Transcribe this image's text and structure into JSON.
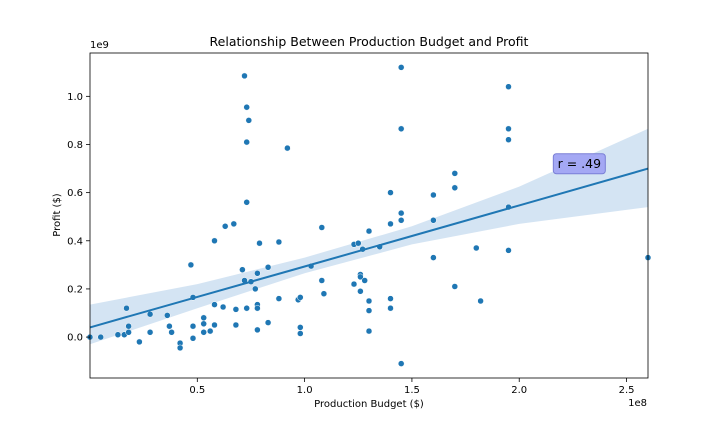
{
  "chart_data": {
    "type": "scatter",
    "title": "Relationship Between Production Budget and Profit",
    "xlabel": "Production Budget ($)",
    "ylabel": "Profit ($)",
    "x_multiplier_label": "1e8",
    "y_multiplier_label": "1e9",
    "xlim": [
      0.0,
      2.6
    ],
    "ylim": [
      -0.17,
      1.18
    ],
    "x_ticks": [
      {
        "value": 0.5,
        "label": "0.5"
      },
      {
        "value": 1.0,
        "label": "1.0"
      },
      {
        "value": 1.5,
        "label": "1.5"
      },
      {
        "value": 2.0,
        "label": "2.0"
      },
      {
        "value": 2.5,
        "label": "2.5"
      }
    ],
    "y_ticks": [
      {
        "value": 0.0,
        "label": "0.0"
      },
      {
        "value": 0.2,
        "label": "0.2"
      },
      {
        "value": 0.4,
        "label": "0.4"
      },
      {
        "value": 0.6,
        "label": "0.6"
      },
      {
        "value": 0.8,
        "label": "0.8"
      },
      {
        "value": 1.0,
        "label": "1.0"
      }
    ],
    "grid": false,
    "annotation": {
      "text": "r = .49",
      "x": 2.28,
      "y": 0.72
    },
    "regression": {
      "x": [
        0.0,
        0.5,
        1.0,
        1.5,
        2.0,
        2.6
      ],
      "y": [
        0.04,
        0.167,
        0.293,
        0.42,
        0.547,
        0.7
      ],
      "ci_lower": [
        -0.03,
        0.12,
        0.265,
        0.385,
        0.47,
        0.54
      ],
      "ci_upper": [
        0.135,
        0.22,
        0.33,
        0.46,
        0.625,
        0.865
      ]
    },
    "colors": {
      "points": "#1f77b4",
      "line": "#1f77b4",
      "band": "#c6dbef",
      "annotation_fill": "#a4a8f4",
      "annotation_stroke": "#7a7fd6"
    },
    "series": [
      {
        "points": [
          [
            0.0,
            0.0
          ],
          [
            0.05,
            0.0
          ],
          [
            0.13,
            0.01
          ],
          [
            0.16,
            0.01
          ],
          [
            0.17,
            0.12
          ],
          [
            0.18,
            0.02
          ],
          [
            0.18,
            0.045
          ],
          [
            0.23,
            -0.02
          ],
          [
            0.28,
            0.095
          ],
          [
            0.28,
            0.02
          ],
          [
            0.36,
            0.09
          ],
          [
            0.37,
            0.045
          ],
          [
            0.38,
            0.02
          ],
          [
            0.42,
            -0.025
          ],
          [
            0.42,
            -0.045
          ],
          [
            0.47,
            0.3
          ],
          [
            0.48,
            0.045
          ],
          [
            0.48,
            0.165
          ],
          [
            0.48,
            -0.005
          ],
          [
            0.53,
            0.08
          ],
          [
            0.53,
            0.055
          ],
          [
            0.53,
            0.02
          ],
          [
            0.56,
            0.025
          ],
          [
            0.58,
            0.135
          ],
          [
            0.58,
            0.05
          ],
          [
            0.58,
            0.4
          ],
          [
            0.62,
            0.125
          ],
          [
            0.63,
            0.46
          ],
          [
            0.67,
            0.47
          ],
          [
            0.68,
            0.115
          ],
          [
            0.68,
            0.05
          ],
          [
            0.71,
            0.28
          ],
          [
            0.72,
            0.235
          ],
          [
            0.72,
            1.085
          ],
          [
            0.73,
            0.955
          ],
          [
            0.73,
            0.81
          ],
          [
            0.73,
            0.56
          ],
          [
            0.73,
            0.12
          ],
          [
            0.74,
            0.9
          ],
          [
            0.75,
            0.23
          ],
          [
            0.77,
            0.2
          ],
          [
            0.78,
            0.135
          ],
          [
            0.78,
            0.12
          ],
          [
            0.78,
            0.265
          ],
          [
            0.78,
            0.03
          ],
          [
            0.79,
            0.39
          ],
          [
            0.83,
            0.06
          ],
          [
            0.83,
            0.29
          ],
          [
            0.88,
            0.395
          ],
          [
            0.88,
            0.16
          ],
          [
            0.92,
            0.785
          ],
          [
            0.97,
            0.155
          ],
          [
            0.98,
            0.165
          ],
          [
            0.98,
            0.04
          ],
          [
            0.98,
            0.015
          ],
          [
            1.03,
            0.295
          ],
          [
            1.08,
            0.455
          ],
          [
            1.08,
            0.235
          ],
          [
            1.09,
            0.18
          ],
          [
            1.23,
            0.385
          ],
          [
            1.23,
            0.22
          ],
          [
            1.25,
            0.39
          ],
          [
            1.26,
            0.26
          ],
          [
            1.26,
            0.25
          ],
          [
            1.26,
            0.19
          ],
          [
            1.27,
            0.365
          ],
          [
            1.28,
            0.235
          ],
          [
            1.3,
            0.44
          ],
          [
            1.3,
            0.15
          ],
          [
            1.3,
            0.11
          ],
          [
            1.3,
            0.025
          ],
          [
            1.35,
            0.375
          ],
          [
            1.4,
            0.6
          ],
          [
            1.4,
            0.47
          ],
          [
            1.4,
            0.16
          ],
          [
            1.4,
            0.12
          ],
          [
            1.45,
            1.12
          ],
          [
            1.45,
            0.865
          ],
          [
            1.45,
            0.515
          ],
          [
            1.45,
            0.485
          ],
          [
            1.45,
            -0.11
          ],
          [
            1.6,
            0.59
          ],
          [
            1.6,
            0.485
          ],
          [
            1.6,
            0.33
          ],
          [
            1.7,
            0.68
          ],
          [
            1.7,
            0.62
          ],
          [
            1.7,
            0.21
          ],
          [
            1.8,
            0.37
          ],
          [
            1.82,
            0.15
          ],
          [
            1.95,
            1.04
          ],
          [
            1.95,
            0.865
          ],
          [
            1.95,
            0.82
          ],
          [
            1.95,
            0.54
          ],
          [
            1.95,
            0.36
          ],
          [
            2.6,
            0.33
          ]
        ]
      }
    ]
  }
}
